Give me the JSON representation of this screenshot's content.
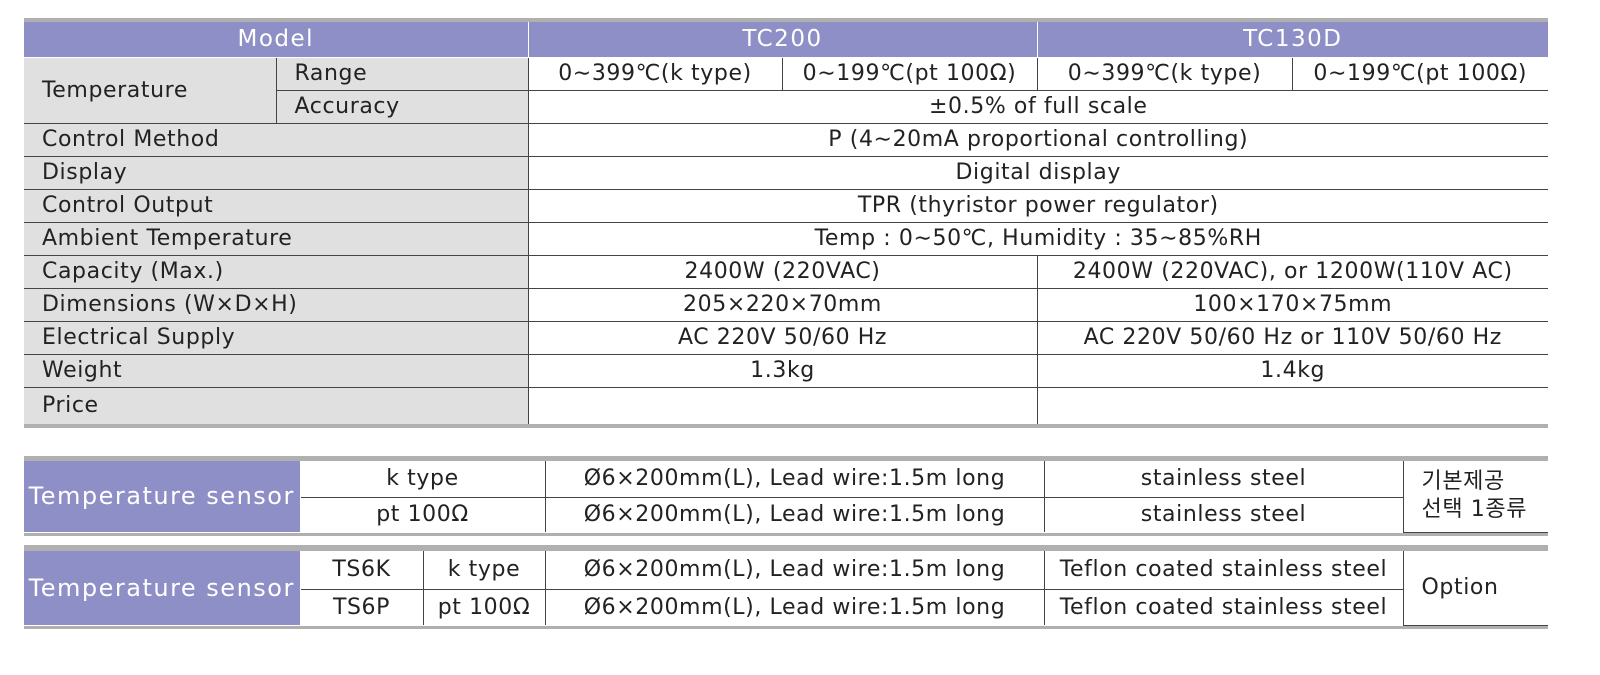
{
  "spec_table": {
    "header": {
      "label": "Model",
      "models": [
        "TC200",
        "TC130D"
      ]
    },
    "temperature": {
      "label": "Temperature",
      "range": {
        "label": "Range",
        "values": [
          "0∼399℃(k type)",
          "0∼199℃(pt 100Ω)",
          "0∼399℃(k type)",
          "0∼199℃(pt 100Ω)"
        ]
      },
      "accuracy": {
        "label": "Accuracy",
        "value": "±0.5% of full scale"
      }
    },
    "rows": [
      {
        "label": "Control Method",
        "values": [
          "P (4∼20mA proportional controlling)"
        ]
      },
      {
        "label": "Display",
        "values": [
          "Digital display"
        ]
      },
      {
        "label": "Control Output",
        "values": [
          "TPR (thyristor power regulator)"
        ]
      },
      {
        "label": "Ambient Temperature",
        "values": [
          "Temp : 0∼50℃, Humidity : 35∼85%RH"
        ]
      },
      {
        "label": "Capacity (Max.)",
        "values": [
          "2400W (220VAC)",
          "2400W (220VAC), or 1200W(110V AC)"
        ]
      },
      {
        "label": "Dimensions (W×D×H)",
        "values": [
          "205×220×70mm",
          "100×170×75mm"
        ]
      },
      {
        "label": "Electrical Supply",
        "values": [
          "AC 220V 50/60 Hz",
          "AC 220V 50/60 Hz or 110V 50/60 Hz"
        ]
      },
      {
        "label": "Weight",
        "values": [
          "1.3kg",
          "1.4kg"
        ]
      },
      {
        "label": "Price"
      }
    ]
  },
  "sensor_basic": {
    "label": "Temperature sensor",
    "rows": [
      {
        "type": "k type",
        "spec": "Ø6×200mm(L), Lead wire:1.5m long",
        "material": "stainless steel"
      },
      {
        "type": "pt 100Ω",
        "spec": "Ø6×200mm(L), Lead wire:1.5m long",
        "material": "stainless steel"
      }
    ],
    "note": [
      "기본제공",
      "선택 1종류"
    ]
  },
  "sensor_option": {
    "label": "Temperature sensor",
    "rows": [
      {
        "model": "TS6K",
        "type": "k type",
        "spec": "Ø6×200mm(L), Lead wire:1.5m long",
        "material": "Teflon coated stainless steel"
      },
      {
        "model": "TS6P",
        "type": "pt 100Ω",
        "spec": "Ø6×200mm(L), Lead wire:1.5m long",
        "material": "Teflon coated stainless steel"
      }
    ],
    "note": "Option"
  }
}
